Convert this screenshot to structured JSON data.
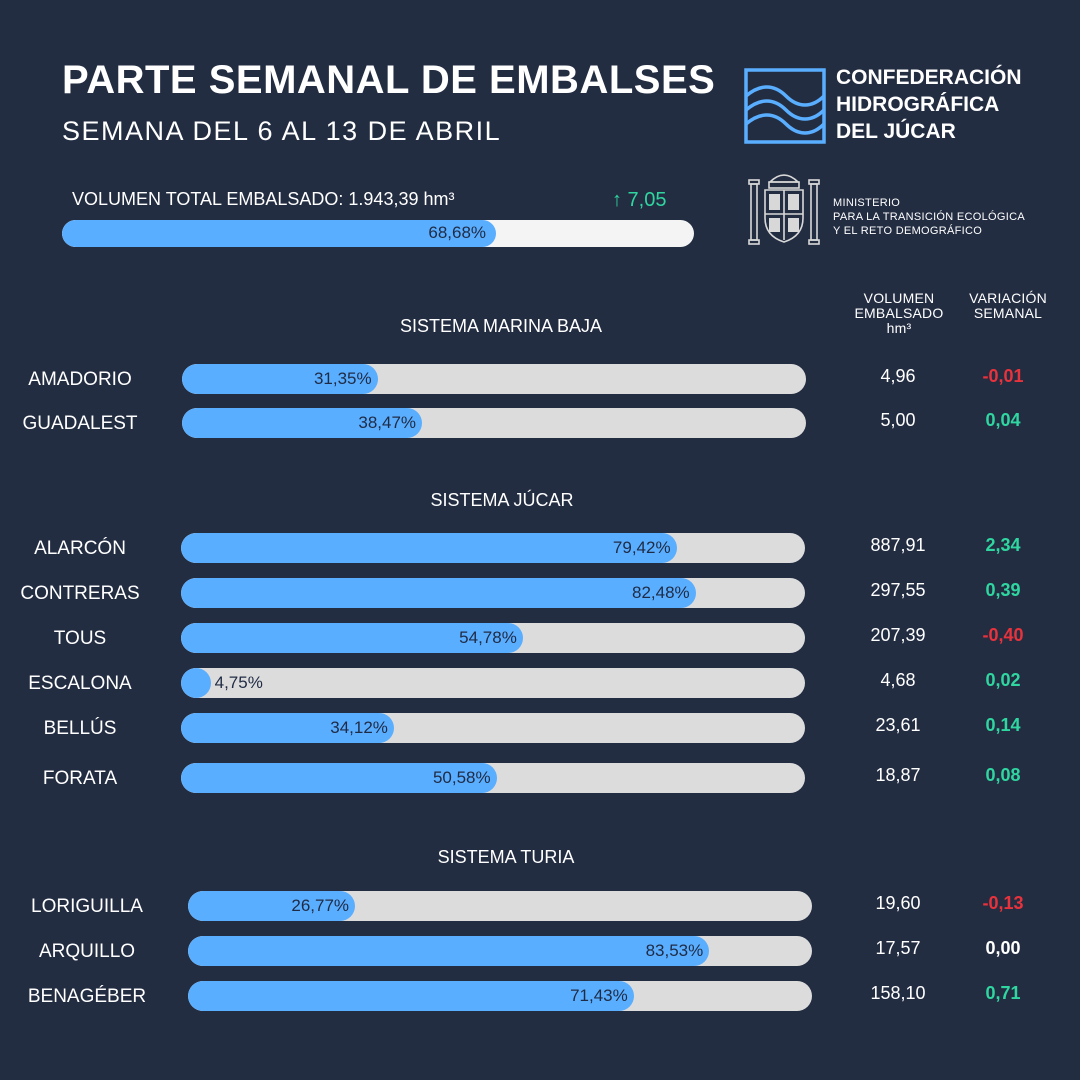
{
  "header": {
    "title": "PARTE SEMANAL DE EMBALSES",
    "subtitle": "SEMANA DEL 6 AL 13 DE ABRIL"
  },
  "organization": {
    "name_lines": [
      "CONFEDERACIÓN",
      "HIDROGRÁFICA",
      "DEL JÚCAR"
    ]
  },
  "ministry": {
    "name_lines": [
      "MINISTERIO",
      "PARA LA TRANSICIÓN ECOLÓGICA",
      "Y EL RETO DEMOGRÁFICO"
    ]
  },
  "summary": {
    "label": "VOLUMEN TOTAL EMBALSADO: 1.943,39 hm³",
    "change": "↑ 7,05",
    "percent": 68.68,
    "percent_label": "68,68%"
  },
  "columns": {
    "volume_lines": [
      "VOLUMEN",
      "EMBALSADO",
      "hm³"
    ],
    "change_lines": [
      "VARIACIÓN",
      "SEMANAL"
    ]
  },
  "colors": {
    "background": "#232d42",
    "bar_fill": "#5aaeff",
    "bar_track": "#dcdcdc",
    "positive": "#2fd6a0",
    "negative": "#e8323c",
    "neutral": "#ffffff"
  },
  "chart_data": {
    "type": "bar",
    "orientation": "horizontal",
    "unit": "%",
    "xlim": [
      0,
      100
    ],
    "groups": [
      {
        "name": "SISTEMA MARINA BAJA",
        "reservoirs": [
          {
            "name": "AMADORIO",
            "percent": 31.35,
            "percent_label": "31,35%",
            "volume": "4,96",
            "change": "-0,01",
            "trend": "negative"
          },
          {
            "name": "GUADALEST",
            "percent": 38.47,
            "percent_label": "38,47%",
            "volume": "5,00",
            "change": "0,04",
            "trend": "positive"
          }
        ]
      },
      {
        "name": "SISTEMA JÚCAR",
        "reservoirs": [
          {
            "name": "ALARCÓN",
            "percent": 79.42,
            "percent_label": "79,42%",
            "volume": "887,91",
            "change": "2,34",
            "trend": "positive"
          },
          {
            "name": "CONTRERAS",
            "percent": 82.48,
            "percent_label": "82,48%",
            "volume": "297,55",
            "change": "0,39",
            "trend": "positive"
          },
          {
            "name": "TOUS",
            "percent": 54.78,
            "percent_label": "54,78%",
            "volume": "207,39",
            "change": "-0,40",
            "trend": "negative"
          },
          {
            "name": "ESCALONA",
            "percent": 4.75,
            "percent_label": "4,75%",
            "volume": "4,68",
            "change": "0,02",
            "trend": "positive"
          },
          {
            "name": "BELLÚS",
            "percent": 34.12,
            "percent_label": "34,12%",
            "volume": "23,61",
            "change": "0,14",
            "trend": "positive"
          },
          {
            "name": "FORATA",
            "percent": 50.58,
            "percent_label": "50,58%",
            "volume": "18,87",
            "change": "0,08",
            "trend": "positive"
          }
        ]
      },
      {
        "name": "SISTEMA TURIA",
        "reservoirs": [
          {
            "name": "LORIGUILLA",
            "percent": 26.77,
            "percent_label": "26,77%",
            "volume": "19,60",
            "change": "-0,13",
            "trend": "negative"
          },
          {
            "name": "ARQUILLO",
            "percent": 83.53,
            "percent_label": "83,53%",
            "volume": "17,57",
            "change": "0,00",
            "trend": "neutral"
          },
          {
            "name": "BENAGÉBER",
            "percent": 71.43,
            "percent_label": "71,43%",
            "volume": "158,10",
            "change": "0,71",
            "trend": "positive"
          }
        ]
      }
    ]
  }
}
